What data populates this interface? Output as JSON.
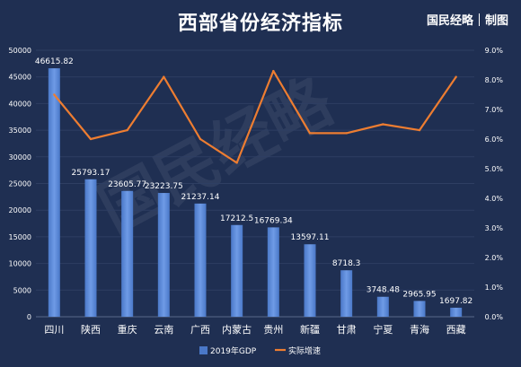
{
  "title": "西部省份经济指标",
  "brand": {
    "name": "国民经略",
    "suffix": "制图"
  },
  "watermark": "国民经略",
  "colors": {
    "background": "#1f2f52",
    "bar": "#4a78c8",
    "bar_light": "#6f9be6",
    "line": "#ed7d31",
    "grid": "#2e3f63",
    "text": "#ffffff"
  },
  "chart_data": {
    "type": "bar",
    "categories": [
      "四川",
      "陕西",
      "重庆",
      "云南",
      "广西",
      "内蒙古",
      "贵州",
      "新疆",
      "甘肃",
      "宁夏",
      "青海",
      "西藏"
    ],
    "series": [
      {
        "name": "2019年GDP",
        "type": "bar",
        "axis": "left",
        "values": [
          46615.82,
          25793.17,
          23605.77,
          23223.75,
          21237.14,
          17212.5,
          16769.34,
          13597.11,
          8718.3,
          3748.48,
          2965.95,
          1697.82
        ],
        "labels": [
          "46615.82",
          "25793.17",
          "23605.77",
          "23223.75",
          "21237.14",
          "17212.5",
          "16769.34",
          "13597.11",
          "8718.3",
          "3748.48",
          "2965.95",
          "1697.82"
        ]
      },
      {
        "name": "实际增速",
        "type": "line",
        "axis": "right",
        "values": [
          7.5,
          6.0,
          6.3,
          8.1,
          6.0,
          5.2,
          8.3,
          6.2,
          6.2,
          6.5,
          6.3,
          8.1
        ]
      }
    ],
    "left_axis": {
      "min": 0,
      "max": 50000,
      "step": 5000,
      "ticks": [
        "0",
        "5000",
        "10000",
        "15000",
        "20000",
        "25000",
        "30000",
        "35000",
        "40000",
        "45000",
        "50000"
      ]
    },
    "right_axis": {
      "min": 0,
      "max": 9,
      "step": 1,
      "ticks": [
        "0.0%",
        "1.0%",
        "2.0%",
        "3.0%",
        "4.0%",
        "5.0%",
        "6.0%",
        "7.0%",
        "8.0%",
        "9.0%"
      ]
    },
    "grid": true,
    "legend_position": "bottom"
  }
}
